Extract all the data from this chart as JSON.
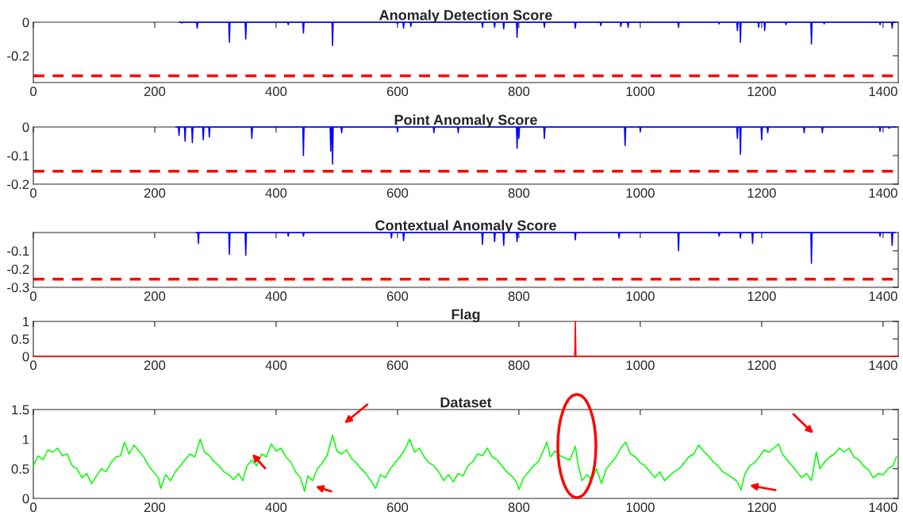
{
  "chart_data": [
    {
      "type": "line",
      "title": "Anomaly Detection Score",
      "xlim": [
        0,
        1425
      ],
      "xticks": [
        0,
        200,
        400,
        600,
        800,
        1000,
        1200,
        1400
      ],
      "ylim": [
        -0.36,
        0
      ],
      "yticks": [
        -0.2,
        0
      ],
      "ref_lines": [
        {
          "axis": "y",
          "value": -0.32,
          "color": "#ff0000",
          "line_style": "dashed"
        }
      ],
      "series": [
        {
          "color": "#0000ff",
          "x": [
            240,
            244,
            245,
            246,
            269,
            270,
            271,
            322,
            323,
            324,
            349,
            350,
            351,
            419,
            420,
            421,
            444,
            445,
            446,
            492,
            493,
            494,
            599,
            600,
            601,
            609,
            610,
            611,
            621,
            622,
            623,
            739,
            740,
            741,
            759,
            760,
            761,
            774,
            775,
            776,
            796,
            797,
            798,
            841,
            842,
            843,
            892,
            893,
            894,
            934,
            935,
            936,
            967,
            968,
            969,
            979,
            980,
            981,
            1062,
            1063,
            1064,
            1129,
            1130,
            1131,
            1159,
            1160,
            1161,
            1164,
            1165,
            1166,
            1194,
            1195,
            1196,
            1204,
            1205,
            1206,
            1239,
            1240,
            1241,
            1281,
            1282,
            1283,
            1302,
            1303,
            1304,
            1394,
            1395,
            1396,
            1414,
            1415,
            1416,
            1420
          ],
          "values": [
            0,
            0,
            -0.005,
            0,
            0,
            -0.035,
            0,
            0,
            -0.12,
            0,
            0,
            -0.1,
            0,
            0,
            -0.015,
            0,
            0,
            -0.065,
            0,
            0,
            -0.14,
            0,
            0,
            -0.01,
            0,
            0,
            -0.035,
            0,
            0,
            -0.025,
            0,
            0,
            -0.03,
            0,
            0,
            -0.03,
            0,
            0,
            -0.04,
            0,
            0,
            -0.09,
            0,
            0,
            -0.03,
            0,
            0,
            -0.035,
            0,
            0,
            -0.02,
            0,
            0,
            -0.025,
            0,
            0,
            -0.03,
            0,
            0,
            -0.03,
            0,
            0,
            -0.01,
            0,
            0,
            -0.05,
            0,
            0,
            -0.12,
            0,
            0,
            -0.03,
            0,
            0,
            -0.05,
            0,
            0,
            -0.015,
            0,
            0,
            -0.13,
            0,
            0,
            -0.01,
            0,
            0,
            -0.015,
            0,
            0,
            -0.035,
            0,
            0
          ]
        }
      ]
    },
    {
      "type": "line",
      "title": "Point Anomaly Score",
      "xlim": [
        0,
        1425
      ],
      "xticks": [
        0,
        200,
        400,
        600,
        800,
        1000,
        1200,
        1400
      ],
      "ylim": [
        -0.2,
        0
      ],
      "yticks": [
        -0.2,
        -0.1,
        0
      ],
      "ref_lines": [
        {
          "axis": "y",
          "value": -0.155,
          "color": "#ff0000",
          "line_style": "dashed"
        }
      ],
      "series": [
        {
          "color": "#0000ff",
          "x": [
            235,
            239,
            240,
            241,
            249,
            250,
            251,
            261,
            262,
            263,
            279,
            280,
            281,
            289,
            290,
            291,
            359,
            360,
            361,
            444,
            445,
            446,
            489,
            490,
            491,
            492,
            493,
            494,
            507,
            508,
            509,
            599,
            600,
            601,
            659,
            660,
            661,
            699,
            700,
            701,
            796,
            797,
            798,
            799,
            800,
            801,
            841,
            842,
            843,
            974,
            975,
            976,
            999,
            1000,
            1001,
            1159,
            1160,
            1161,
            1164,
            1165,
            1166,
            1199,
            1200,
            1201,
            1209,
            1210,
            1211,
            1269,
            1270,
            1271,
            1299,
            1300,
            1301,
            1394,
            1395,
            1396,
            1409,
            1410,
            1411,
            1420
          ],
          "values": [
            0,
            0,
            -0.03,
            0,
            0,
            -0.05,
            0,
            0,
            -0.055,
            0,
            0,
            -0.045,
            0,
            0,
            -0.035,
            0,
            0,
            -0.04,
            0,
            0,
            -0.1,
            0,
            0,
            -0.085,
            0,
            0,
            -0.13,
            0,
            0,
            -0.02,
            0,
            0,
            -0.015,
            0,
            0,
            -0.02,
            0,
            0,
            -0.02,
            0,
            0,
            -0.075,
            0,
            0,
            -0.04,
            0,
            0,
            -0.04,
            0,
            0,
            -0.065,
            0,
            0,
            -0.015,
            0,
            0,
            -0.04,
            0,
            0,
            -0.095,
            0,
            0,
            -0.045,
            0,
            0,
            -0.02,
            0,
            0,
            -0.02,
            0,
            0,
            -0.02,
            0,
            0,
            -0.015,
            0,
            0,
            -0.005,
            0,
            0
          ]
        }
      ]
    },
    {
      "type": "line",
      "title": "Contextual Anomaly Score",
      "xlim": [
        0,
        1425
      ],
      "xticks": [
        0,
        200,
        400,
        600,
        800,
        1000,
        1200,
        1400
      ],
      "ylim": [
        -0.3,
        0
      ],
      "yticks": [
        -0.3,
        -0.2,
        -0.1
      ],
      "ref_lines": [
        {
          "axis": "y",
          "value": -0.255,
          "color": "#ff0000",
          "line_style": "dashed"
        }
      ],
      "series": [
        {
          "color": "#0000ff",
          "x": [
            268,
            271,
            272,
            273,
            322,
            323,
            324,
            349,
            350,
            351,
            419,
            420,
            421,
            444,
            445,
            446,
            589,
            590,
            591,
            609,
            610,
            611,
            739,
            740,
            741,
            759,
            760,
            761,
            774,
            775,
            776,
            796,
            797,
            798,
            892,
            893,
            894,
            964,
            965,
            966,
            1062,
            1063,
            1064,
            1129,
            1130,
            1131,
            1164,
            1165,
            1166,
            1184,
            1185,
            1186,
            1281,
            1282,
            1283,
            1394,
            1395,
            1396,
            1414,
            1415,
            1416,
            1420
          ],
          "values": [
            0,
            0,
            -0.06,
            0,
            0,
            -0.12,
            0,
            0,
            -0.125,
            0,
            0,
            -0.02,
            0,
            0,
            -0.02,
            0,
            0,
            -0.03,
            0,
            0,
            -0.045,
            0,
            0,
            -0.065,
            0,
            0,
            -0.05,
            0,
            0,
            -0.07,
            0,
            0,
            -0.05,
            0,
            0,
            -0.04,
            0,
            0,
            -0.03,
            0,
            0,
            -0.1,
            0,
            0,
            -0.02,
            0,
            0,
            -0.03,
            0,
            0,
            -0.06,
            0,
            0,
            -0.17,
            0,
            0,
            -0.02,
            0,
            0,
            -0.07,
            0,
            0
          ]
        }
      ]
    },
    {
      "type": "line",
      "title": "Flag",
      "xlim": [
        0,
        1425
      ],
      "xticks": [
        0,
        200,
        400,
        600,
        800,
        1000,
        1200,
        1400
      ],
      "ylim": [
        0,
        1
      ],
      "yticks": [
        0,
        0.5,
        1
      ],
      "series": [
        {
          "color": "#ff0000",
          "x": [
            0,
            892,
            893,
            894,
            1425
          ],
          "values": [
            0,
            0,
            1,
            0,
            0
          ]
        }
      ]
    },
    {
      "type": "line",
      "title": "Dataset",
      "xlim": [
        0,
        1425
      ],
      "xticks": [
        0,
        200,
        400,
        600,
        800,
        1000,
        1200,
        1400
      ],
      "ylim": [
        0,
        1.5
      ],
      "yticks": [
        0,
        0.5,
        1,
        1.5
      ],
      "series": [
        {
          "color": "#00ff00",
          "x": [
            0,
            8,
            16,
            24,
            32,
            40,
            48,
            56,
            64,
            72,
            80,
            88,
            96,
            104,
            112,
            120,
            128,
            136,
            144,
            150,
            158,
            166,
            174,
            182,
            190,
            198,
            206,
            210,
            218,
            226,
            234,
            242,
            250,
            258,
            266,
            275,
            282,
            290,
            298,
            306,
            314,
            322,
            330,
            338,
            345,
            352,
            360,
            368,
            376,
            384,
            392,
            400,
            408,
            416,
            424,
            432,
            440,
            447,
            452,
            460,
            468,
            476,
            484,
            493,
            500,
            508,
            516,
            524,
            532,
            540,
            548,
            556,
            564,
            572,
            580,
            588,
            596,
            604,
            612,
            620,
            628,
            636,
            644,
            652,
            660,
            668,
            676,
            684,
            692,
            700,
            708,
            716,
            724,
            732,
            740,
            748,
            756,
            764,
            772,
            780,
            788,
            796,
            800,
            808,
            816,
            824,
            832,
            840,
            846,
            852,
            860,
            868,
            876,
            884,
            893,
            898,
            904,
            912,
            920,
            928,
            936,
            944,
            952,
            960,
            968,
            976,
            984,
            992,
            1000,
            1008,
            1016,
            1024,
            1032,
            1040,
            1048,
            1056,
            1064,
            1072,
            1080,
            1088,
            1096,
            1104,
            1112,
            1120,
            1128,
            1136,
            1144,
            1152,
            1160,
            1166,
            1172,
            1180,
            1188,
            1196,
            1204,
            1212,
            1220,
            1228,
            1234,
            1242,
            1250,
            1258,
            1266,
            1274,
            1282,
            1290,
            1296,
            1304,
            1312,
            1320,
            1328,
            1336,
            1344,
            1352,
            1360,
            1368,
            1376,
            1384,
            1392,
            1400,
            1408,
            1416,
            1422
          ],
          "values": [
            0.55,
            0.72,
            0.65,
            0.82,
            0.78,
            0.85,
            0.72,
            0.75,
            0.55,
            0.5,
            0.35,
            0.42,
            0.25,
            0.38,
            0.5,
            0.45,
            0.6,
            0.7,
            0.72,
            0.95,
            0.75,
            0.9,
            0.8,
            0.7,
            0.55,
            0.45,
            0.35,
            0.17,
            0.4,
            0.3,
            0.45,
            0.55,
            0.65,
            0.75,
            0.7,
            1.0,
            0.78,
            0.72,
            0.62,
            0.55,
            0.45,
            0.4,
            0.32,
            0.42,
            0.3,
            0.55,
            0.65,
            0.55,
            0.75,
            0.7,
            0.92,
            0.8,
            0.85,
            0.7,
            0.62,
            0.45,
            0.35,
            0.12,
            0.38,
            0.3,
            0.5,
            0.6,
            0.72,
            1.07,
            0.8,
            0.75,
            0.82,
            0.68,
            0.6,
            0.5,
            0.42,
            0.3,
            0.17,
            0.4,
            0.35,
            0.5,
            0.6,
            0.7,
            0.82,
            1.0,
            0.78,
            0.85,
            0.7,
            0.6,
            0.55,
            0.45,
            0.3,
            0.4,
            0.28,
            0.42,
            0.38,
            0.55,
            0.62,
            0.75,
            0.72,
            0.85,
            0.7,
            0.65,
            0.55,
            0.45,
            0.38,
            0.28,
            0.15,
            0.35,
            0.45,
            0.55,
            0.62,
            0.8,
            0.95,
            0.7,
            0.8,
            0.72,
            0.68,
            0.65,
            0.88,
            0.55,
            0.3,
            0.4,
            0.32,
            0.5,
            0.25,
            0.5,
            0.6,
            0.7,
            0.85,
            0.95,
            0.75,
            0.7,
            0.6,
            0.55,
            0.45,
            0.35,
            0.45,
            0.3,
            0.38,
            0.45,
            0.5,
            0.6,
            0.7,
            0.75,
            0.9,
            0.8,
            0.72,
            0.62,
            0.55,
            0.45,
            0.4,
            0.35,
            0.28,
            0.14,
            0.4,
            0.55,
            0.6,
            0.7,
            0.82,
            0.78,
            0.85,
            0.92,
            0.75,
            0.65,
            0.55,
            0.45,
            0.35,
            0.42,
            0.3,
            0.78,
            0.5,
            0.62,
            0.7,
            0.75,
            0.85,
            0.78,
            0.85,
            0.7,
            0.65,
            0.55,
            0.48,
            0.35,
            0.42,
            0.4,
            0.5,
            0.55,
            0.7
          ]
        }
      ]
    }
  ]
}
